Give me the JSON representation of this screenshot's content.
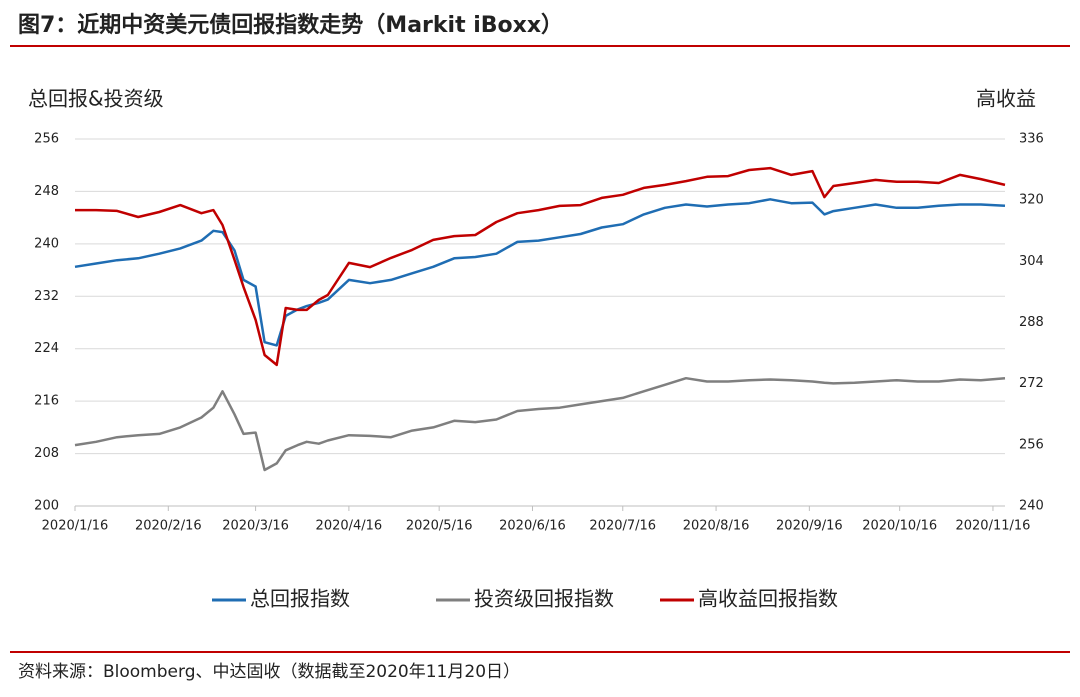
{
  "chart_data": {
    "type": "line",
    "title": "图7：近期中资美元债回报指数走势（Markit iBoxx）",
    "ylabel": "总回报&投资级",
    "y2label": "高收益",
    "source": "资料来源：Bloomberg、中达固收（数据截至2020年11月20日）",
    "x": [
      "2020/1/16",
      "2020/1/23",
      "2020/1/30",
      "2020/2/6",
      "2020/2/13",
      "2020/2/20",
      "2020/2/27",
      "2020/3/2",
      "2020/3/5",
      "2020/3/9",
      "2020/3/12",
      "2020/3/16",
      "2020/3/19",
      "2020/3/23",
      "2020/3/26",
      "2020/3/30",
      "2020/4/2",
      "2020/4/6",
      "2020/4/9",
      "2020/4/16",
      "2020/4/23",
      "2020/4/30",
      "2020/5/7",
      "2020/5/14",
      "2020/5/21",
      "2020/5/28",
      "2020/6/4",
      "2020/6/11",
      "2020/6/18",
      "2020/6/25",
      "2020/7/2",
      "2020/7/9",
      "2020/7/16",
      "2020/7/23",
      "2020/7/30",
      "2020/8/6",
      "2020/8/13",
      "2020/8/20",
      "2020/8/27",
      "2020/9/3",
      "2020/9/10",
      "2020/9/17",
      "2020/9/21",
      "2020/9/24",
      "2020/10/1",
      "2020/10/8",
      "2020/10/15",
      "2020/10/22",
      "2020/10/29",
      "2020/11/5",
      "2020/11/12",
      "2020/11/20"
    ],
    "xlim": [
      "2020/1/16",
      "2020/11/20"
    ],
    "xticks": [
      "2020/1/16",
      "2020/2/16",
      "2020/3/16",
      "2020/4/16",
      "2020/5/16",
      "2020/6/16",
      "2020/7/16",
      "2020/8/16",
      "2020/9/16",
      "2020/10/16",
      "2020/11/16"
    ],
    "ylim": [
      200,
      256
    ],
    "yticks": [
      200,
      208,
      216,
      224,
      232,
      240,
      248,
      256
    ],
    "y2lim": [
      240,
      336
    ],
    "y2ticks": [
      240,
      256,
      272,
      288,
      304,
      320,
      336
    ],
    "grid": true,
    "series": [
      {
        "name": "总回报指数",
        "color": "#1f6db3",
        "values": [
          236.5,
          237,
          237.5,
          237.8,
          238.5,
          239.3,
          240.5,
          242,
          241.8,
          239,
          234.5,
          233.5,
          225,
          224.5,
          229,
          230,
          230.5,
          231,
          231.5,
          234.5,
          234,
          234.5,
          235.5,
          236.5,
          237.8,
          238,
          238.5,
          240.3,
          240.5,
          241,
          241.5,
          242.5,
          243,
          244.5,
          245.5,
          246,
          245.7,
          246,
          246.2,
          246.8,
          246.2,
          246.3,
          244.5,
          245,
          245.5,
          246,
          245.5,
          245.5,
          245.8,
          246,
          246,
          245.8
        ]
      },
      {
        "name": "投资级回报指数",
        "color": "#7f7f7f",
        "values": [
          209.3,
          209.8,
          210.5,
          210.8,
          211,
          212,
          213.5,
          215,
          217.5,
          214,
          211,
          211.2,
          205.5,
          206.5,
          208.5,
          209.3,
          209.8,
          209.5,
          210,
          210.8,
          210.7,
          210.5,
          211.5,
          212,
          213,
          212.8,
          213.2,
          214.5,
          214.8,
          215,
          215.5,
          216,
          216.5,
          217.5,
          218.5,
          219.5,
          219,
          219,
          219.2,
          219.3,
          219.2,
          219,
          218.8,
          218.7,
          218.8,
          219,
          219.2,
          219,
          219,
          219.3,
          219.2,
          219.5
        ]
      },
      {
        "name": "高收益回报指数",
        "color": "#c00000",
        "axis": "y2",
        "values": [
          317.4,
          317.4,
          317.2,
          315.6,
          316.9,
          318.7,
          316.6,
          317.4,
          313.5,
          304.4,
          297.3,
          288.7,
          279.5,
          276.9,
          291.8,
          291.3,
          291.3,
          293.9,
          295.2,
          303.6,
          302.5,
          304.9,
          307,
          309.6,
          310.6,
          310.9,
          314.3,
          316.6,
          317.4,
          318.5,
          318.7,
          320.6,
          321.4,
          323.2,
          324,
          325,
          326.1,
          326.3,
          327.9,
          328.4,
          326.6,
          327.6,
          320.8,
          323.7,
          324.5,
          325.3,
          324.8,
          324.8,
          324.5,
          326.6,
          325.5,
          324
        ]
      }
    ]
  }
}
